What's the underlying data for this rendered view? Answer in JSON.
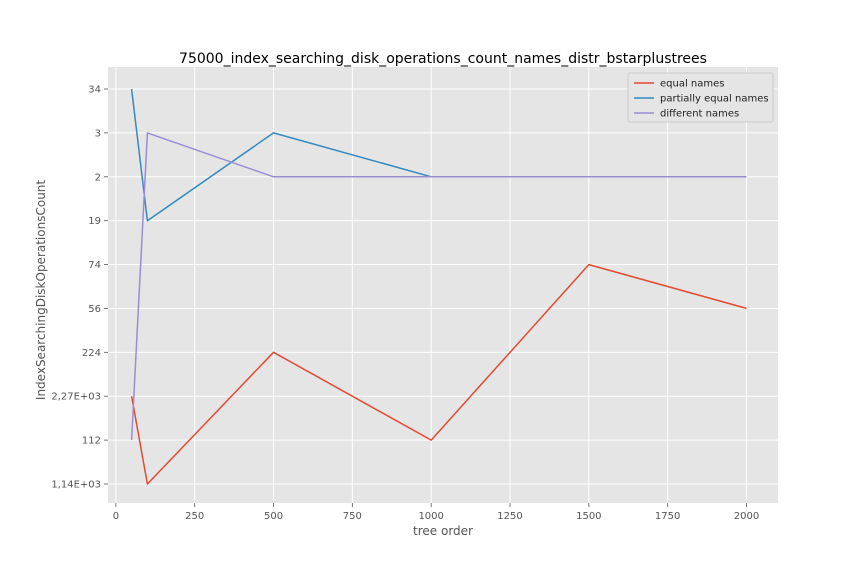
{
  "chart_data": {
    "type": "line",
    "title": "75000_index_searching_disk_operations_count_names_distr_bstarplustrees",
    "xlabel": "tree order",
    "ylabel": "IndexSearchingDiskOperationsCount",
    "x": [
      50,
      100,
      500,
      1000,
      1500,
      2000
    ],
    "x_ticks": [
      0,
      250,
      500,
      750,
      1000,
      1250,
      1500,
      1750,
      2000
    ],
    "x_tick_labels": [
      "0",
      "250",
      "500",
      "750",
      "1000",
      "1250",
      "1500",
      "1750",
      "2000"
    ],
    "xlim": [
      -25,
      2100
    ],
    "y_axis_type": "categorical",
    "y_categories": [
      "1,14E+03",
      "112",
      "2,27E+03",
      "224",
      "56",
      "74",
      "19",
      "2",
      "3",
      "34"
    ],
    "grid": true,
    "legend_position": "top-right",
    "series": [
      {
        "name": "equal names",
        "color": "#e24a33",
        "values": [
          "2,27E+03",
          "1,14E+03",
          "224",
          "112",
          "74",
          "56"
        ]
      },
      {
        "name": "partially equal names",
        "color": "#348abd",
        "values": [
          "34",
          "19",
          "3",
          "2",
          "2",
          "2"
        ]
      },
      {
        "name": "different names",
        "color": "#988ed5",
        "values": [
          "112",
          "3",
          "2",
          "2",
          "2",
          "2"
        ]
      }
    ]
  }
}
